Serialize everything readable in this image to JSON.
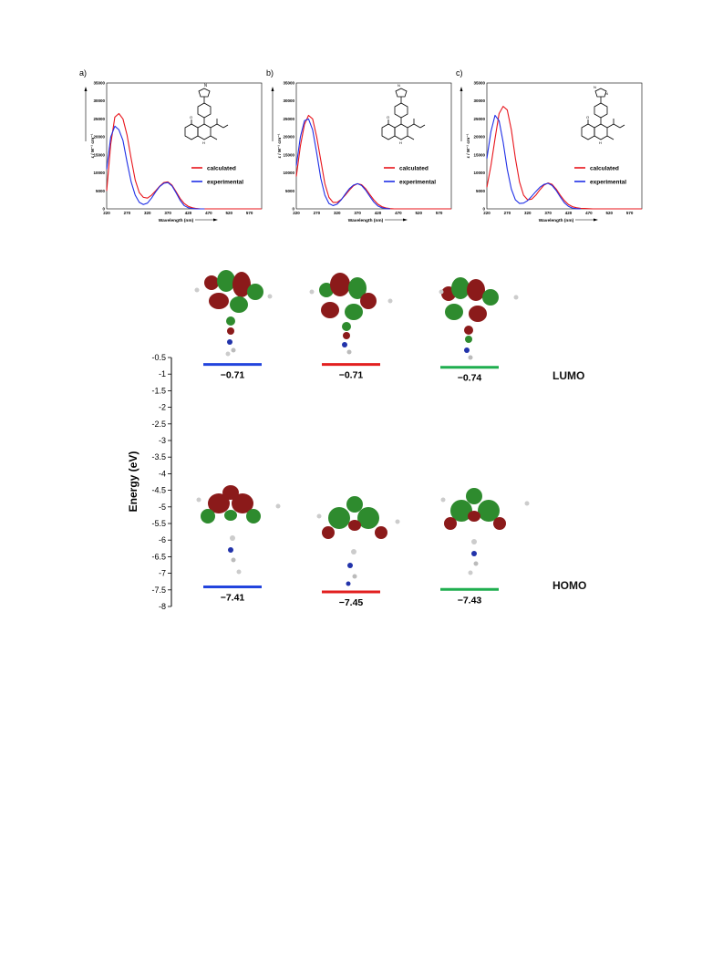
{
  "chart_data": [
    {
      "type": "line",
      "panel": "a)",
      "xlabel": "Wavelength (nm)",
      "ylabel": "ε / M⁻¹ cm⁻¹",
      "x_ticks": [
        "220",
        "270",
        "320",
        "370",
        "420",
        "470",
        "520",
        "570"
      ],
      "y_ticks": [
        "0",
        "5000",
        "10000",
        "15000",
        "20000",
        "25000",
        "30000",
        "35000"
      ],
      "xlim": [
        220,
        600
      ],
      "ylim": [
        0,
        35000
      ],
      "series": [
        {
          "name": "calculated",
          "color": "#e8141b",
          "x": [
            220,
            230,
            240,
            250,
            260,
            270,
            280,
            290,
            300,
            310,
            320,
            330,
            340,
            350,
            360,
            370,
            380,
            390,
            400,
            410,
            420,
            430,
            440,
            450,
            460,
            470,
            480,
            490,
            500,
            520,
            540,
            560,
            580,
            600
          ],
          "y": [
            5000,
            18000,
            25500,
            26500,
            25000,
            20500,
            14000,
            8000,
            4500,
            3200,
            3000,
            3800,
            5000,
            6300,
            7300,
            7500,
            6600,
            4800,
            2900,
            1500,
            700,
            300,
            100,
            0,
            0,
            0,
            0,
            0,
            0,
            0,
            0,
            0,
            0,
            0
          ]
        },
        {
          "name": "experimental",
          "color": "#1e2ee6",
          "x": [
            220,
            230,
            240,
            250,
            260,
            270,
            280,
            290,
            300,
            310,
            320,
            330,
            340,
            350,
            360,
            370,
            380,
            390,
            400,
            410,
            420,
            430,
            440,
            450,
            460
          ],
          "y": [
            11000,
            20000,
            23000,
            22000,
            19000,
            13000,
            7500,
            3800,
            1800,
            1200,
            1600,
            3000,
            4700,
            6200,
            7100,
            7300,
            6400,
            4500,
            2400,
            900,
            300,
            100,
            0,
            0,
            0
          ]
        }
      ]
    },
    {
      "type": "line",
      "panel": "b)",
      "xlabel": "Wavelength (nm)",
      "ylabel": "ε / M⁻¹ cm⁻¹",
      "x_ticks": [
        "220",
        "270",
        "320",
        "370",
        "420",
        "470",
        "520",
        "570"
      ],
      "y_ticks": [
        "0",
        "5000",
        "10000",
        "15000",
        "20000",
        "25000",
        "30000",
        "35000"
      ],
      "xlim": [
        220,
        600
      ],
      "ylim": [
        0,
        35000
      ],
      "series": [
        {
          "name": "calculated",
          "color": "#e8141b",
          "x": [
            220,
            230,
            240,
            250,
            260,
            270,
            280,
            290,
            300,
            310,
            320,
            330,
            340,
            350,
            360,
            370,
            380,
            390,
            400,
            410,
            420,
            430,
            440,
            450,
            460,
            480,
            500,
            540,
            600
          ],
          "y": [
            9000,
            17500,
            23500,
            26000,
            25000,
            20000,
            13500,
            7000,
            3200,
            1800,
            1800,
            2600,
            3800,
            5200,
            6400,
            7000,
            6700,
            5600,
            4000,
            2500,
            1300,
            600,
            250,
            80,
            0,
            0,
            0,
            0,
            0
          ]
        },
        {
          "name": "experimental",
          "color": "#1e2ee6",
          "x": [
            220,
            230,
            240,
            250,
            260,
            270,
            280,
            290,
            300,
            310,
            320,
            330,
            340,
            350,
            360,
            370,
            380,
            390,
            400,
            410,
            420,
            430,
            440,
            450
          ],
          "y": [
            12000,
            20000,
            24500,
            25000,
            22000,
            15500,
            8500,
            3800,
            1500,
            900,
            1300,
            2500,
            4100,
            5600,
            6600,
            7000,
            6500,
            5200,
            3500,
            1900,
            800,
            300,
            80,
            0
          ]
        }
      ]
    },
    {
      "type": "line",
      "panel": "c)",
      "xlabel": "Wavelength (nm)",
      "ylabel": "ε / M⁻¹ cm⁻¹",
      "x_ticks": [
        "220",
        "270",
        "320",
        "370",
        "420",
        "470",
        "520",
        "570"
      ],
      "y_ticks": [
        "0",
        "5000",
        "10000",
        "15000",
        "20000",
        "25000",
        "30000",
        "35000"
      ],
      "xlim": [
        220,
        600
      ],
      "ylim": [
        0,
        35000
      ],
      "series": [
        {
          "name": "calculated",
          "color": "#e8141b",
          "x": [
            220,
            230,
            240,
            250,
            260,
            270,
            280,
            290,
            300,
            310,
            320,
            330,
            340,
            350,
            360,
            370,
            380,
            390,
            400,
            410,
            420,
            430,
            440,
            450,
            460,
            470,
            480,
            500,
            540,
            600
          ],
          "y": [
            6000,
            12000,
            19500,
            26500,
            28500,
            27500,
            22000,
            14000,
            7500,
            3800,
            2500,
            2700,
            3800,
            5300,
            6600,
            7200,
            6800,
            5500,
            3800,
            2300,
            1200,
            600,
            300,
            150,
            100,
            50,
            0,
            0,
            0,
            0
          ]
        },
        {
          "name": "experimental",
          "color": "#1e2ee6",
          "x": [
            220,
            230,
            240,
            250,
            260,
            270,
            280,
            290,
            300,
            310,
            320,
            330,
            340,
            350,
            360,
            370,
            380,
            390,
            400,
            410,
            420,
            430,
            440,
            450
          ],
          "y": [
            14000,
            21500,
            26000,
            24500,
            18500,
            11000,
            5500,
            2500,
            1500,
            1600,
            2300,
            3500,
            4800,
            6000,
            6800,
            7100,
            6500,
            5100,
            3300,
            1700,
            700,
            200,
            50,
            0
          ]
        }
      ]
    },
    {
      "type": "scatter",
      "ylabel": "Energy (eV)",
      "ylim": [
        -8,
        -0.5
      ],
      "y_ticks": [
        "-0.5",
        "-1",
        "-1.5",
        "-2",
        "-2.5",
        "-3",
        "-3.5",
        "-4",
        "-4.5",
        "-5",
        "-5.5",
        "-6",
        "-6.5",
        "-7",
        "-7.5",
        "-8"
      ],
      "levels": [
        {
          "column": 1,
          "color": "#2244dd",
          "lumo": -0.71,
          "homo": -7.41,
          "lumo_label": "−0.71",
          "homo_label": "−7.41"
        },
        {
          "column": 2,
          "color": "#e21f1f",
          "lumo": -0.71,
          "homo": -7.45,
          "lumo_label": "−0.71",
          "homo_label": "−7.45"
        },
        {
          "column": 3,
          "color": "#1fae4f",
          "lumo": -0.74,
          "homo": -7.43,
          "lumo_label": "−0.74",
          "homo_label": "−7.43"
        }
      ],
      "orbital_labels": {
        "lumo": "LUMO",
        "homo": "HOMO"
      }
    }
  ]
}
